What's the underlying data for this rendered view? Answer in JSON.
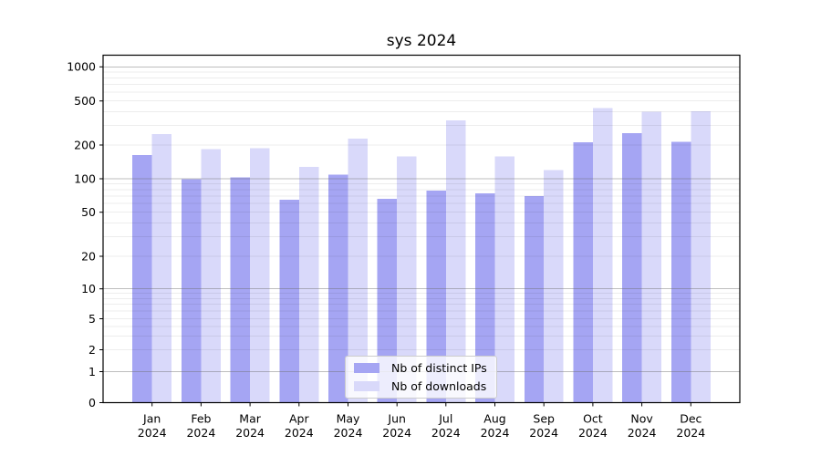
{
  "title": "sys 2024",
  "chart_data": {
    "type": "bar",
    "title": "sys 2024",
    "yscale": "symlog",
    "grid": true,
    "legend_position": "lower center",
    "x_tick_year": "2024",
    "categories": [
      "Jan",
      "Feb",
      "Mar",
      "Apr",
      "May",
      "Jun",
      "Jul",
      "Aug",
      "Sep",
      "Oct",
      "Nov",
      "Dec"
    ],
    "series": [
      {
        "name": "Nb of distinct IPs",
        "color": "#a5a5f3",
        "values": [
          163,
          99,
          103,
          65,
          109,
          66,
          78,
          74,
          70,
          212,
          256,
          213
        ]
      },
      {
        "name": "Nb of downloads",
        "color": "#d9d9fa",
        "values": [
          252,
          183,
          188,
          127,
          228,
          158,
          335,
          158,
          119,
          430,
          398,
          405
        ]
      }
    ],
    "yticks": [
      0,
      1,
      2,
      5,
      10,
      20,
      50,
      100,
      200,
      500,
      1000
    ],
    "major_grid_values": [
      1,
      10,
      100,
      1000
    ],
    "ylim": [
      0,
      1400
    ]
  },
  "colors": {
    "major_grid": "rgba(110,110,110,0.45)",
    "minor_grid": "rgba(0,0,0,0.07)",
    "frame": "#000000",
    "text": "#000000",
    "legend_border": "#cccccc",
    "legend_bg": "rgba(255,255,255,0.8)"
  }
}
